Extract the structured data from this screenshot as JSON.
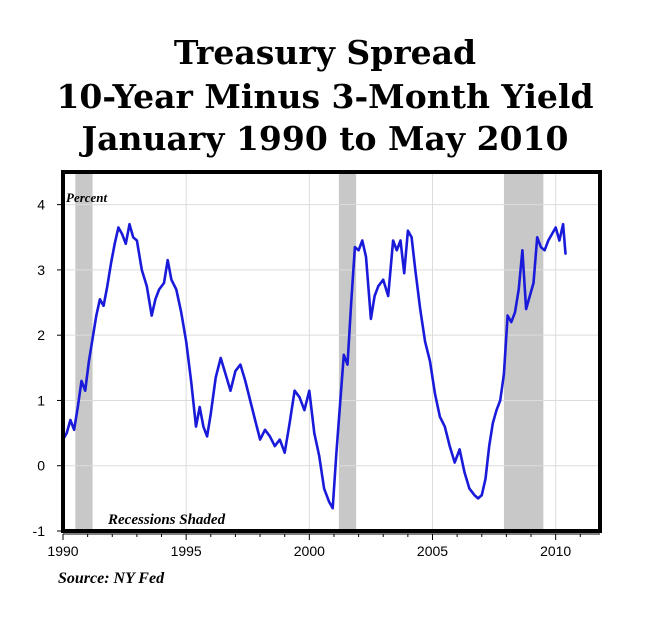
{
  "chart_data": {
    "type": "line",
    "title": [
      "Treasury Spread",
      "10-Year Minus 3-Month Yield",
      "January 1990 to May 2010"
    ],
    "ylabel": "Percent",
    "annotation": "Recessions Shaded",
    "source": "Source: NY Fed",
    "xlim": [
      1990,
      2011.8
    ],
    "ylim": [
      -1,
      4.5
    ],
    "x_ticks": [
      1990,
      1995,
      2000,
      2005,
      2010
    ],
    "x_tick_labels": [
      "1990",
      "1995",
      "2000",
      "2005",
      "2010"
    ],
    "y_ticks": [
      -1,
      0,
      1,
      2,
      3,
      4
    ],
    "y_tick_labels": [
      "-1",
      "0",
      "1",
      "2",
      "3",
      "4"
    ],
    "grid": true,
    "line_color": "#1a1adb",
    "recession_color": "#c8c8c8",
    "recessions": [
      [
        1990.5,
        1991.2
      ],
      [
        2001.2,
        2001.9
      ],
      [
        2007.9,
        2009.5
      ]
    ],
    "series": [
      {
        "x": [
          1990.0,
          1990.15,
          1990.3,
          1990.45,
          1990.6,
          1990.75,
          1990.9,
          1991.05,
          1991.2,
          1991.35,
          1991.5,
          1991.65,
          1991.8,
          1991.95,
          1992.1,
          1992.25,
          1992.4,
          1992.55,
          1992.7,
          1992.85,
          1993.0,
          1993.2,
          1993.4,
          1993.6,
          1993.75,
          1993.9,
          1994.1,
          1994.25,
          1994.4,
          1994.6,
          1994.8,
          1995.0,
          1995.2,
          1995.4,
          1995.55,
          1995.7,
          1995.85,
          1996.0,
          1996.2,
          1996.4,
          1996.6,
          1996.8,
          1997.0,
          1997.2,
          1997.4,
          1997.6,
          1997.8,
          1998.0,
          1998.2,
          1998.4,
          1998.6,
          1998.8,
          1999.0,
          1999.2,
          1999.4,
          1999.6,
          1999.8,
          2000.0,
          2000.2,
          2000.4,
          2000.6,
          2000.8,
          2000.95,
          2001.1,
          2001.25,
          2001.4,
          2001.55,
          2001.7,
          2001.85,
          2002.0,
          2002.15,
          2002.3,
          2002.5,
          2002.65,
          2002.8,
          2003.0,
          2003.2,
          2003.4,
          2003.55,
          2003.7,
          2003.85,
          2004.0,
          2004.15,
          2004.3,
          2004.5,
          2004.7,
          2004.9,
          2005.1,
          2005.3,
          2005.5,
          2005.7,
          2005.9,
          2006.1,
          2006.3,
          2006.5,
          2006.7,
          2006.85,
          2007.0,
          2007.15,
          2007.3,
          2007.45,
          2007.6,
          2007.75,
          2007.9,
          2008.05,
          2008.2,
          2008.35,
          2008.5,
          2008.65,
          2008.8,
          2008.95,
          2009.1,
          2009.25,
          2009.4,
          2009.55,
          2009.7,
          2009.85,
          2010.0,
          2010.15,
          2010.3,
          2010.4
        ],
        "y": [
          0.4,
          0.5,
          0.7,
          0.55,
          0.9,
          1.3,
          1.15,
          1.6,
          1.95,
          2.3,
          2.55,
          2.45,
          2.75,
          3.1,
          3.4,
          3.65,
          3.55,
          3.4,
          3.7,
          3.5,
          3.45,
          3.0,
          2.75,
          2.3,
          2.55,
          2.7,
          2.8,
          3.15,
          2.85,
          2.7,
          2.35,
          1.9,
          1.3,
          0.6,
          0.9,
          0.6,
          0.45,
          0.8,
          1.35,
          1.65,
          1.4,
          1.15,
          1.45,
          1.55,
          1.3,
          1.0,
          0.7,
          0.4,
          0.55,
          0.45,
          0.3,
          0.4,
          0.2,
          0.65,
          1.15,
          1.05,
          0.85,
          1.15,
          0.5,
          0.15,
          -0.35,
          -0.55,
          -0.65,
          0.2,
          0.95,
          1.7,
          1.55,
          2.5,
          3.35,
          3.3,
          3.45,
          3.2,
          2.25,
          2.6,
          2.75,
          2.85,
          2.6,
          3.45,
          3.3,
          3.45,
          2.95,
          3.6,
          3.5,
          3.0,
          2.4,
          1.9,
          1.6,
          1.1,
          0.75,
          0.6,
          0.3,
          0.05,
          0.25,
          -0.1,
          -0.35,
          -0.45,
          -0.5,
          -0.45,
          -0.2,
          0.3,
          0.65,
          0.85,
          1.0,
          1.4,
          2.3,
          2.2,
          2.35,
          2.7,
          3.3,
          2.4,
          2.6,
          2.8,
          3.5,
          3.35,
          3.3,
          3.45,
          3.55,
          3.65,
          3.45,
          3.7,
          3.25
        ]
      }
    ]
  }
}
